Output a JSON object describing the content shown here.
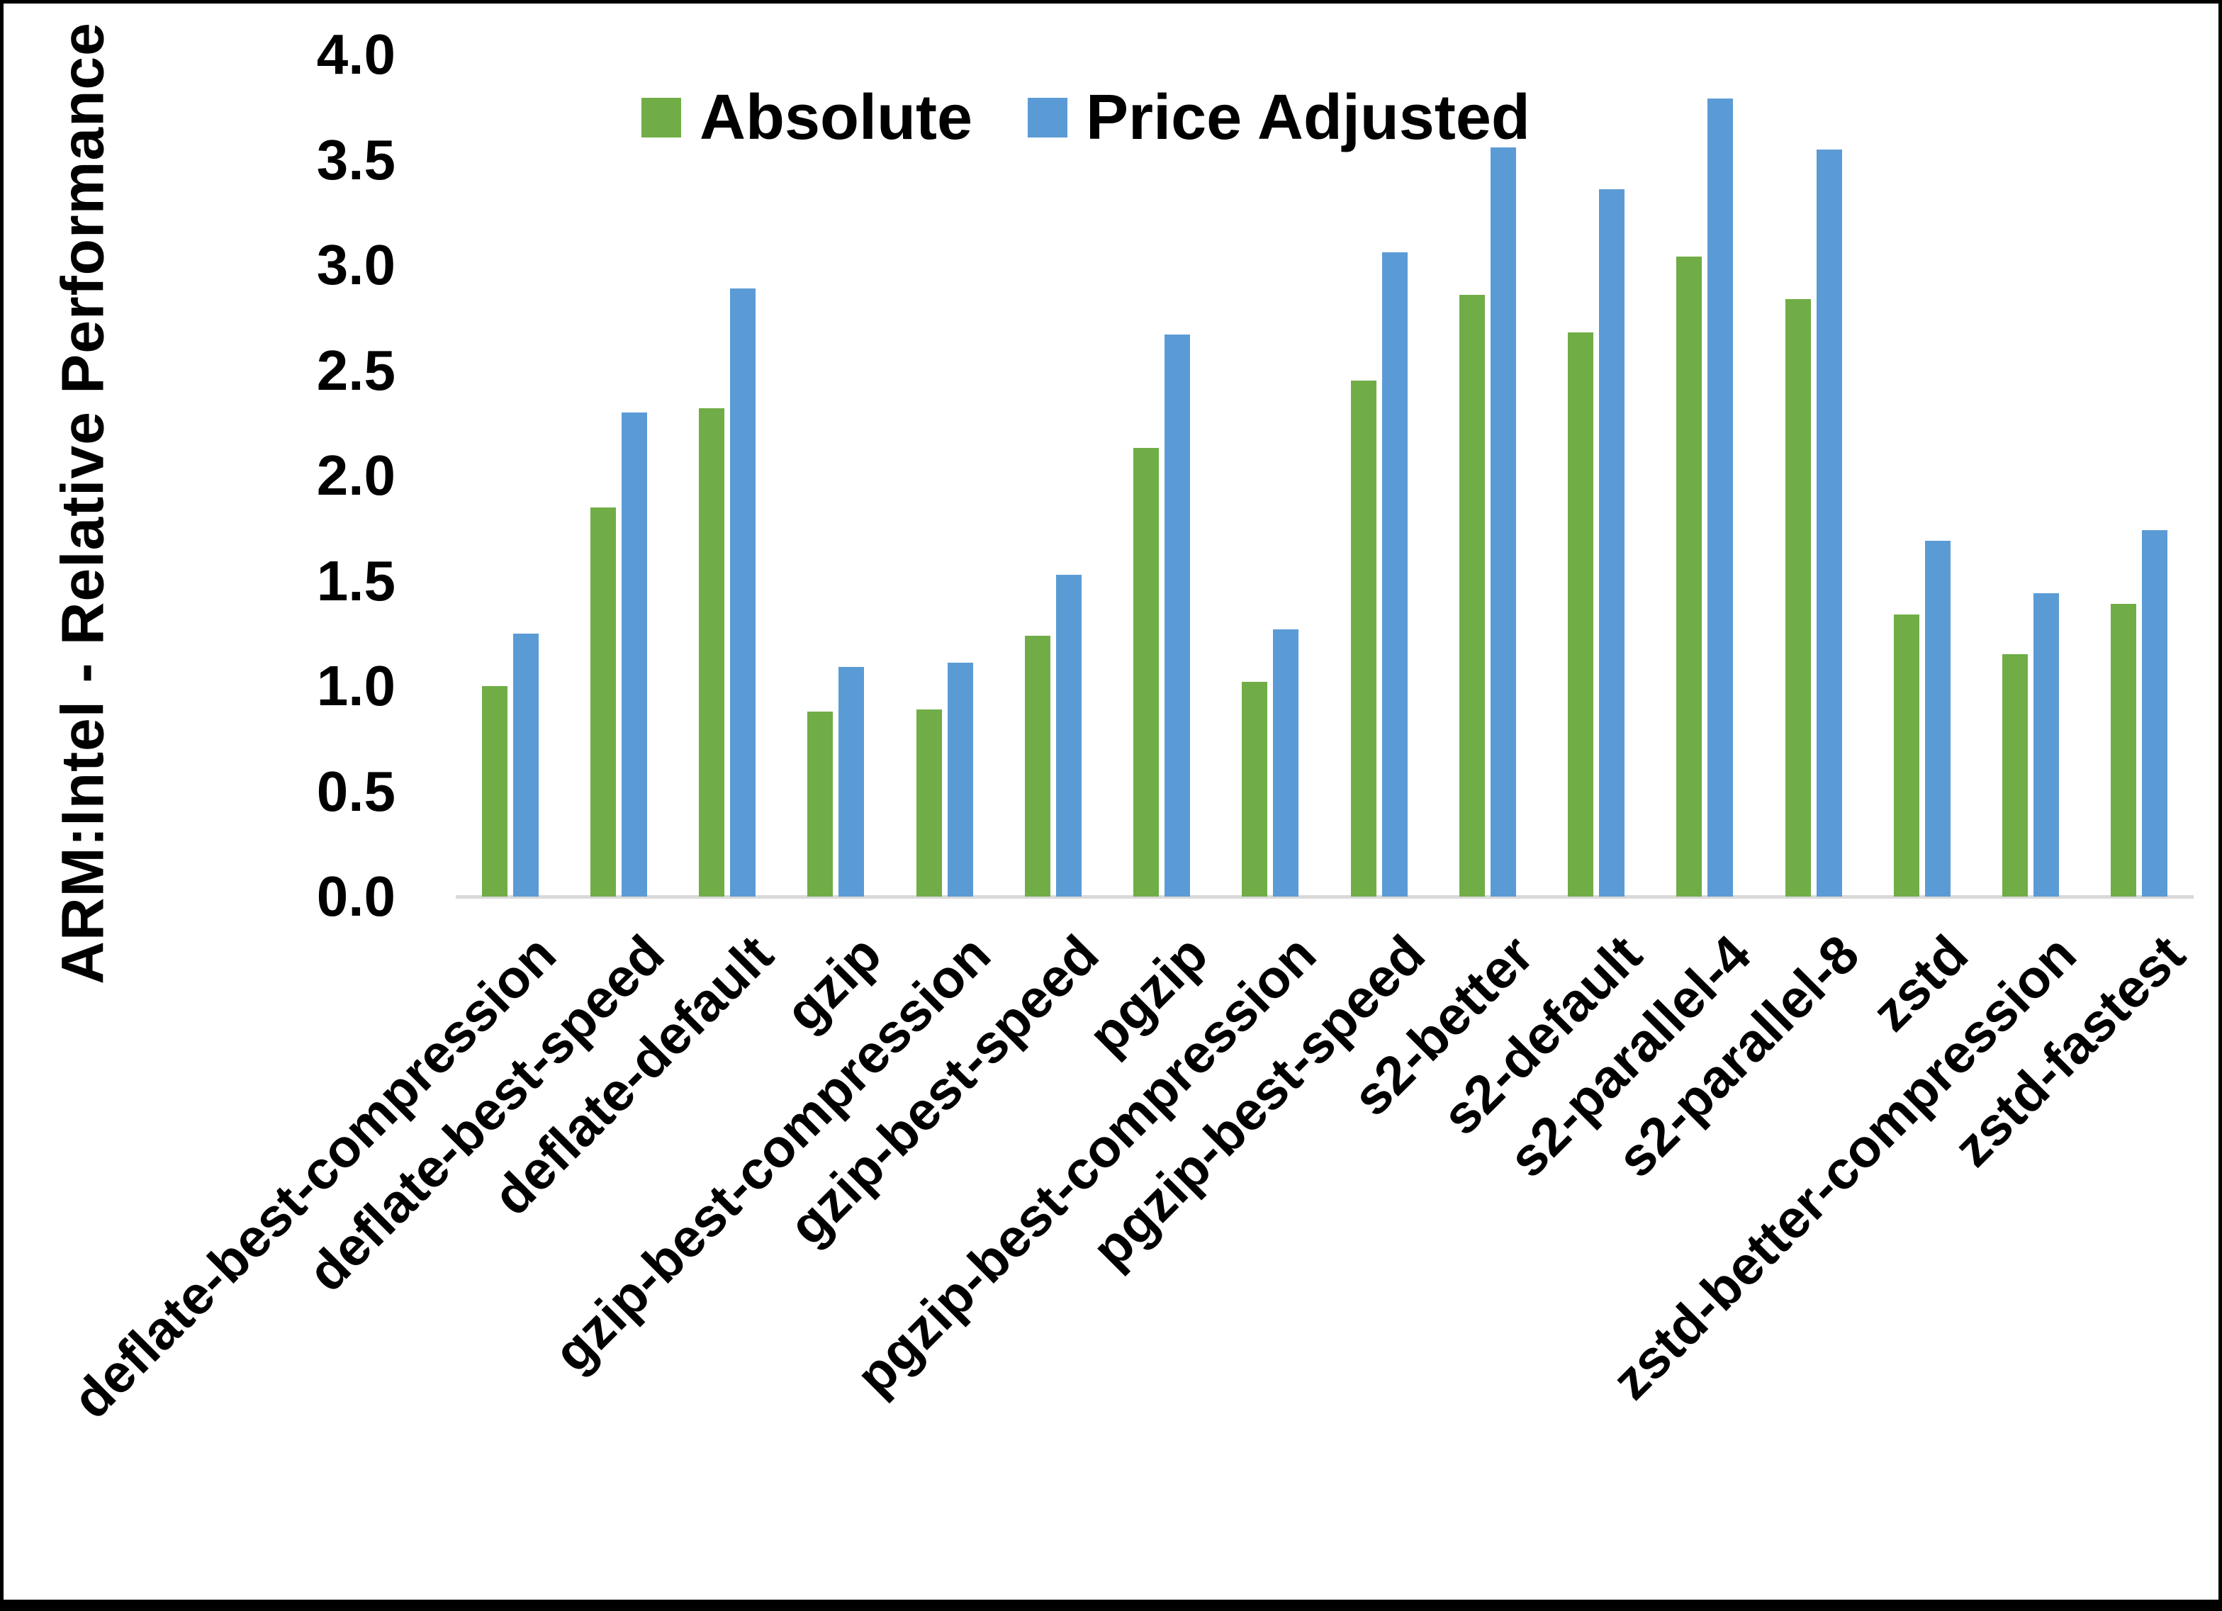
{
  "figure": {
    "background": "#ffffff",
    "border_color": "#000000",
    "axis_line_color": "#d9d9d9",
    "text_color": "#000000"
  },
  "chart_data": {
    "type": "bar",
    "title": "",
    "xlabel": "",
    "ylabel": "ARM:Intel - Relative Performance",
    "ylim": [
      0.0,
      4.0
    ],
    "ytick_step": 0.5,
    "yticks": [
      "0.0",
      "0.5",
      "1.0",
      "1.5",
      "2.0",
      "2.5",
      "3.0",
      "3.5",
      "4.0"
    ],
    "grid": false,
    "legend_position": "top-center",
    "categories": [
      "deflate-best-compression",
      "deflate-best-speed",
      "deflate-default",
      "gzip",
      "gzip-best-compression",
      "gzip-best-speed",
      "pgzip",
      "pgzip-best-compression",
      "pgzip-best-speed",
      "s2-better",
      "s2-default",
      "s2-parallel-4",
      "s2-parallel-8",
      "zstd",
      "zstd-better-compression",
      "zstd-fastest"
    ],
    "series": [
      {
        "name": "Absolute",
        "color": "#70AD47",
        "values": [
          1.0,
          1.85,
          2.32,
          0.88,
          0.89,
          1.24,
          2.13,
          1.02,
          2.45,
          2.86,
          2.68,
          3.04,
          2.84,
          1.34,
          1.15,
          1.39
        ]
      },
      {
        "name": "Price Adjusted",
        "color": "#5B9BD5",
        "values": [
          1.25,
          2.3,
          2.89,
          1.09,
          1.11,
          1.53,
          2.67,
          1.27,
          3.06,
          3.56,
          3.36,
          3.79,
          3.55,
          1.69,
          1.44,
          1.74
        ]
      }
    ]
  }
}
